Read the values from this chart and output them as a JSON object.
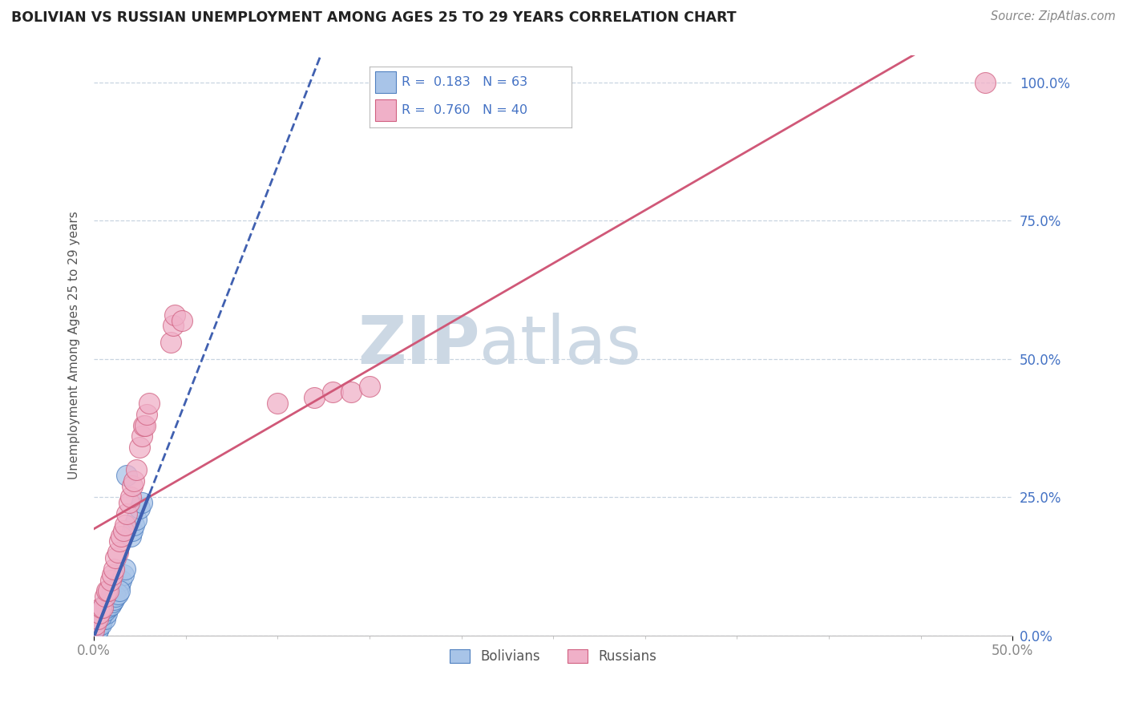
{
  "title": "BOLIVIAN VS RUSSIAN UNEMPLOYMENT AMONG AGES 25 TO 29 YEARS CORRELATION CHART",
  "source": "Source: ZipAtlas.com",
  "ylabel_label": "Unemployment Among Ages 25 to 29 years",
  "legend_r1": "R =  0.183",
  "legend_n1": "N = 63",
  "legend_r2": "R =  0.760",
  "legend_n2": "N = 40",
  "bolivian_fill": "#a8c4e8",
  "bolivian_edge": "#5080c0",
  "russian_fill": "#f0b0c8",
  "russian_edge": "#d06080",
  "bolivian_line_color": "#4060b0",
  "russian_line_color": "#d05878",
  "blue_text": "#4472c4",
  "grid_color": "#c8d4e0",
  "watermark_color": "#ccd8e4",
  "background_color": "#ffffff",
  "bolivians_x": [
    0.001,
    0.001,
    0.001,
    0.001,
    0.001,
    0.001,
    0.001,
    0.001,
    0.001,
    0.002,
    0.002,
    0.002,
    0.002,
    0.002,
    0.002,
    0.002,
    0.003,
    0.003,
    0.003,
    0.003,
    0.004,
    0.004,
    0.004,
    0.005,
    0.005,
    0.005,
    0.006,
    0.006,
    0.007,
    0.007,
    0.007,
    0.008,
    0.008,
    0.009,
    0.009,
    0.01,
    0.01,
    0.011,
    0.012,
    0.013,
    0.014,
    0.015,
    0.016,
    0.017,
    0.018,
    0.02,
    0.021,
    0.022,
    0.023,
    0.025,
    0.026,
    0.003,
    0.004,
    0.005,
    0.006,
    0.007,
    0.008,
    0.009,
    0.01,
    0.011,
    0.012,
    0.013,
    0.014
  ],
  "bolivians_y": [
    0.01,
    0.01,
    0.01,
    0.01,
    0.02,
    0.02,
    0.02,
    0.03,
    0.03,
    0.01,
    0.01,
    0.02,
    0.02,
    0.03,
    0.03,
    0.04,
    0.02,
    0.02,
    0.03,
    0.04,
    0.02,
    0.03,
    0.04,
    0.03,
    0.04,
    0.05,
    0.03,
    0.05,
    0.04,
    0.05,
    0.06,
    0.05,
    0.06,
    0.06,
    0.07,
    0.06,
    0.08,
    0.07,
    0.08,
    0.09,
    0.09,
    0.1,
    0.11,
    0.12,
    0.29,
    0.18,
    0.19,
    0.2,
    0.21,
    0.23,
    0.24,
    0.04,
    0.035,
    0.045,
    0.045,
    0.05,
    0.055,
    0.055,
    0.06,
    0.065,
    0.07,
    0.075,
    0.08
  ],
  "russians_x": [
    0.0,
    0.001,
    0.002,
    0.003,
    0.004,
    0.005,
    0.006,
    0.007,
    0.008,
    0.009,
    0.01,
    0.011,
    0.012,
    0.013,
    0.014,
    0.015,
    0.016,
    0.017,
    0.018,
    0.019,
    0.02,
    0.021,
    0.022,
    0.023,
    0.025,
    0.026,
    0.027,
    0.028,
    0.029,
    0.03,
    0.042,
    0.043,
    0.044,
    0.048,
    0.1,
    0.12,
    0.13,
    0.14,
    0.15,
    0.485
  ],
  "russians_y": [
    0.01,
    0.02,
    0.03,
    0.04,
    0.05,
    0.05,
    0.07,
    0.08,
    0.08,
    0.1,
    0.11,
    0.12,
    0.14,
    0.15,
    0.17,
    0.18,
    0.19,
    0.2,
    0.22,
    0.24,
    0.25,
    0.27,
    0.28,
    0.3,
    0.34,
    0.36,
    0.38,
    0.38,
    0.4,
    0.42,
    0.53,
    0.56,
    0.58,
    0.57,
    0.42,
    0.43,
    0.44,
    0.44,
    0.45,
    1.0
  ],
  "xlim": [
    0,
    0.5
  ],
  "ylim": [
    0,
    1.05
  ],
  "xticks": [
    0,
    0.5
  ],
  "yticks": [
    0,
    0.25,
    0.5,
    0.75,
    1.0
  ]
}
